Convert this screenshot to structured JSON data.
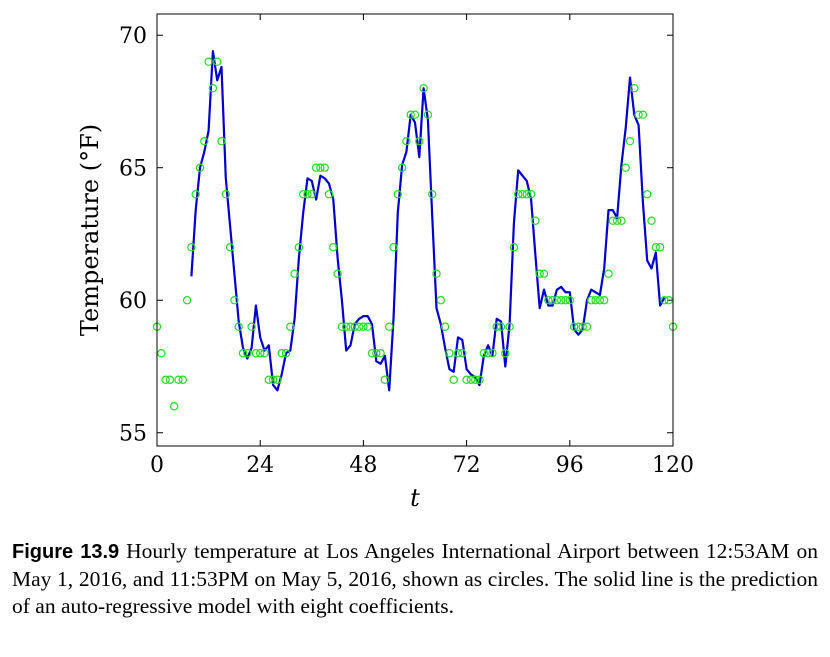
{
  "chart_data": {
    "type": "line",
    "title": "",
    "xlabel": "t",
    "ylabel": "Temperature (°F)",
    "xlim": [
      0,
      120
    ],
    "ylim": [
      54.5,
      70.8
    ],
    "xticks": [
      0,
      24,
      48,
      72,
      96,
      120
    ],
    "yticks": [
      55,
      60,
      65,
      70
    ],
    "grid": false,
    "series": [
      {
        "kind": "scatter",
        "color": "#22dd22",
        "values": [
          59,
          58,
          57,
          57,
          56,
          57,
          57,
          60,
          62,
          64,
          65,
          66,
          69,
          68,
          69,
          66,
          64,
          62,
          60,
          59,
          58,
          58,
          59,
          58,
          58,
          58,
          57,
          57,
          57,
          58,
          58,
          59,
          61,
          62,
          64,
          64,
          64,
          65,
          65,
          65,
          64,
          62,
          61,
          59,
          59,
          59,
          59,
          59,
          59,
          59,
          58,
          58,
          58,
          57,
          59,
          62,
          64,
          65,
          66,
          67,
          67,
          66,
          68,
          67,
          64,
          61,
          60,
          59,
          58,
          57,
          58,
          58,
          57,
          57,
          57,
          57,
          58,
          58,
          58,
          59,
          59,
          58,
          59,
          62,
          64,
          64,
          64,
          64,
          63,
          61,
          61,
          60,
          60,
          60,
          60,
          60,
          60,
          59,
          59,
          59,
          59,
          60,
          60,
          60,
          60,
          61,
          63,
          63,
          63,
          65,
          66,
          68,
          67,
          67,
          64,
          63,
          62,
          62,
          60,
          60,
          59
        ]
      },
      {
        "kind": "line",
        "color": "#0000cc",
        "x_start": 8,
        "values": [
          60.9,
          63.4,
          65.0,
          65.6,
          66.4,
          69.4,
          68.3,
          68.8,
          64.6,
          62.8,
          61.0,
          59.2,
          58.2,
          57.8,
          58.2,
          59.8,
          58.6,
          58.1,
          58.3,
          56.8,
          56.6,
          57.2,
          58.0,
          58.1,
          59.3,
          61.6,
          63.3,
          64.6,
          64.5,
          63.8,
          64.7,
          64.6,
          64.4,
          63.8,
          61.6,
          60.0,
          58.1,
          58.3,
          59.1,
          59.3,
          59.4,
          59.4,
          59.1,
          57.7,
          57.6,
          57.9,
          56.6,
          59.3,
          63.3,
          65.1,
          65.6,
          67.0,
          66.7,
          65.4,
          68.0,
          66.8,
          63.2,
          59.7,
          59.1,
          58.2,
          57.4,
          57.3,
          58.6,
          58.5,
          57.4,
          57.2,
          57.1,
          56.8,
          57.9,
          58.3,
          57.9,
          59.3,
          59.2,
          57.5,
          59.1,
          62.9,
          64.9,
          64.7,
          64.5,
          63.8,
          61.7,
          59.7,
          60.4,
          59.8,
          59.8,
          60.4,
          60.5,
          60.3,
          60.3,
          58.9,
          58.7,
          58.9,
          60.0,
          60.4,
          60.3,
          60.2,
          61.2,
          63.4,
          63.4,
          63.1,
          65.1,
          66.5,
          68.4,
          67.0,
          66.6,
          63.7,
          61.5,
          61.2,
          61.8,
          59.8,
          60.1
        ]
      }
    ]
  },
  "caption": {
    "label": "Figure 13.9",
    "text": "Hourly temperature at Los Angeles International Airport between 12:53AM on May 1, 2016, and 11:53PM on May 5, 2016, shown as circles. The solid line is the prediction of an auto-regressive model with eight coefficients."
  }
}
